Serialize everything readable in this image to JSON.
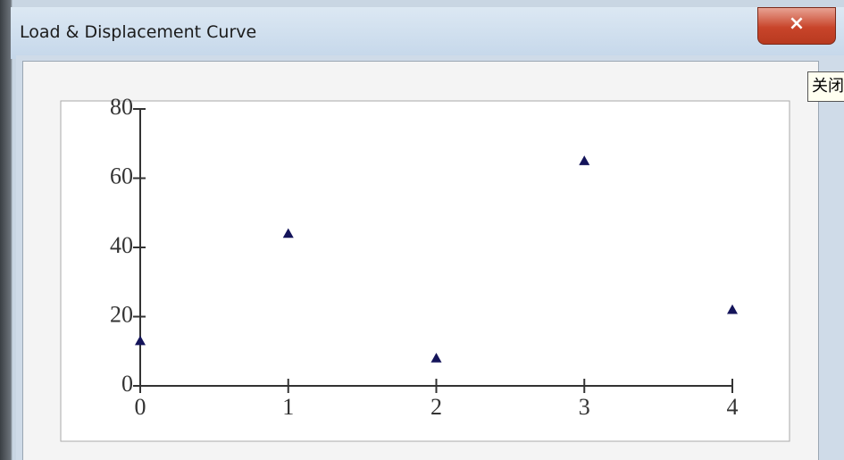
{
  "window": {
    "title": "Load & Displacement Curve",
    "close_tooltip": "关闭"
  },
  "chart_data": {
    "type": "scatter",
    "x": [
      0,
      1,
      2,
      3,
      4
    ],
    "values": [
      13,
      44,
      8,
      65,
      22
    ],
    "color": "#14145a",
    "marker": "triangle",
    "xlim": [
      0,
      4
    ],
    "xticks": [
      0,
      1,
      2,
      3,
      4
    ],
    "ylim": [
      0,
      80
    ],
    "yticks": [
      0,
      20,
      40,
      60,
      80
    ]
  }
}
